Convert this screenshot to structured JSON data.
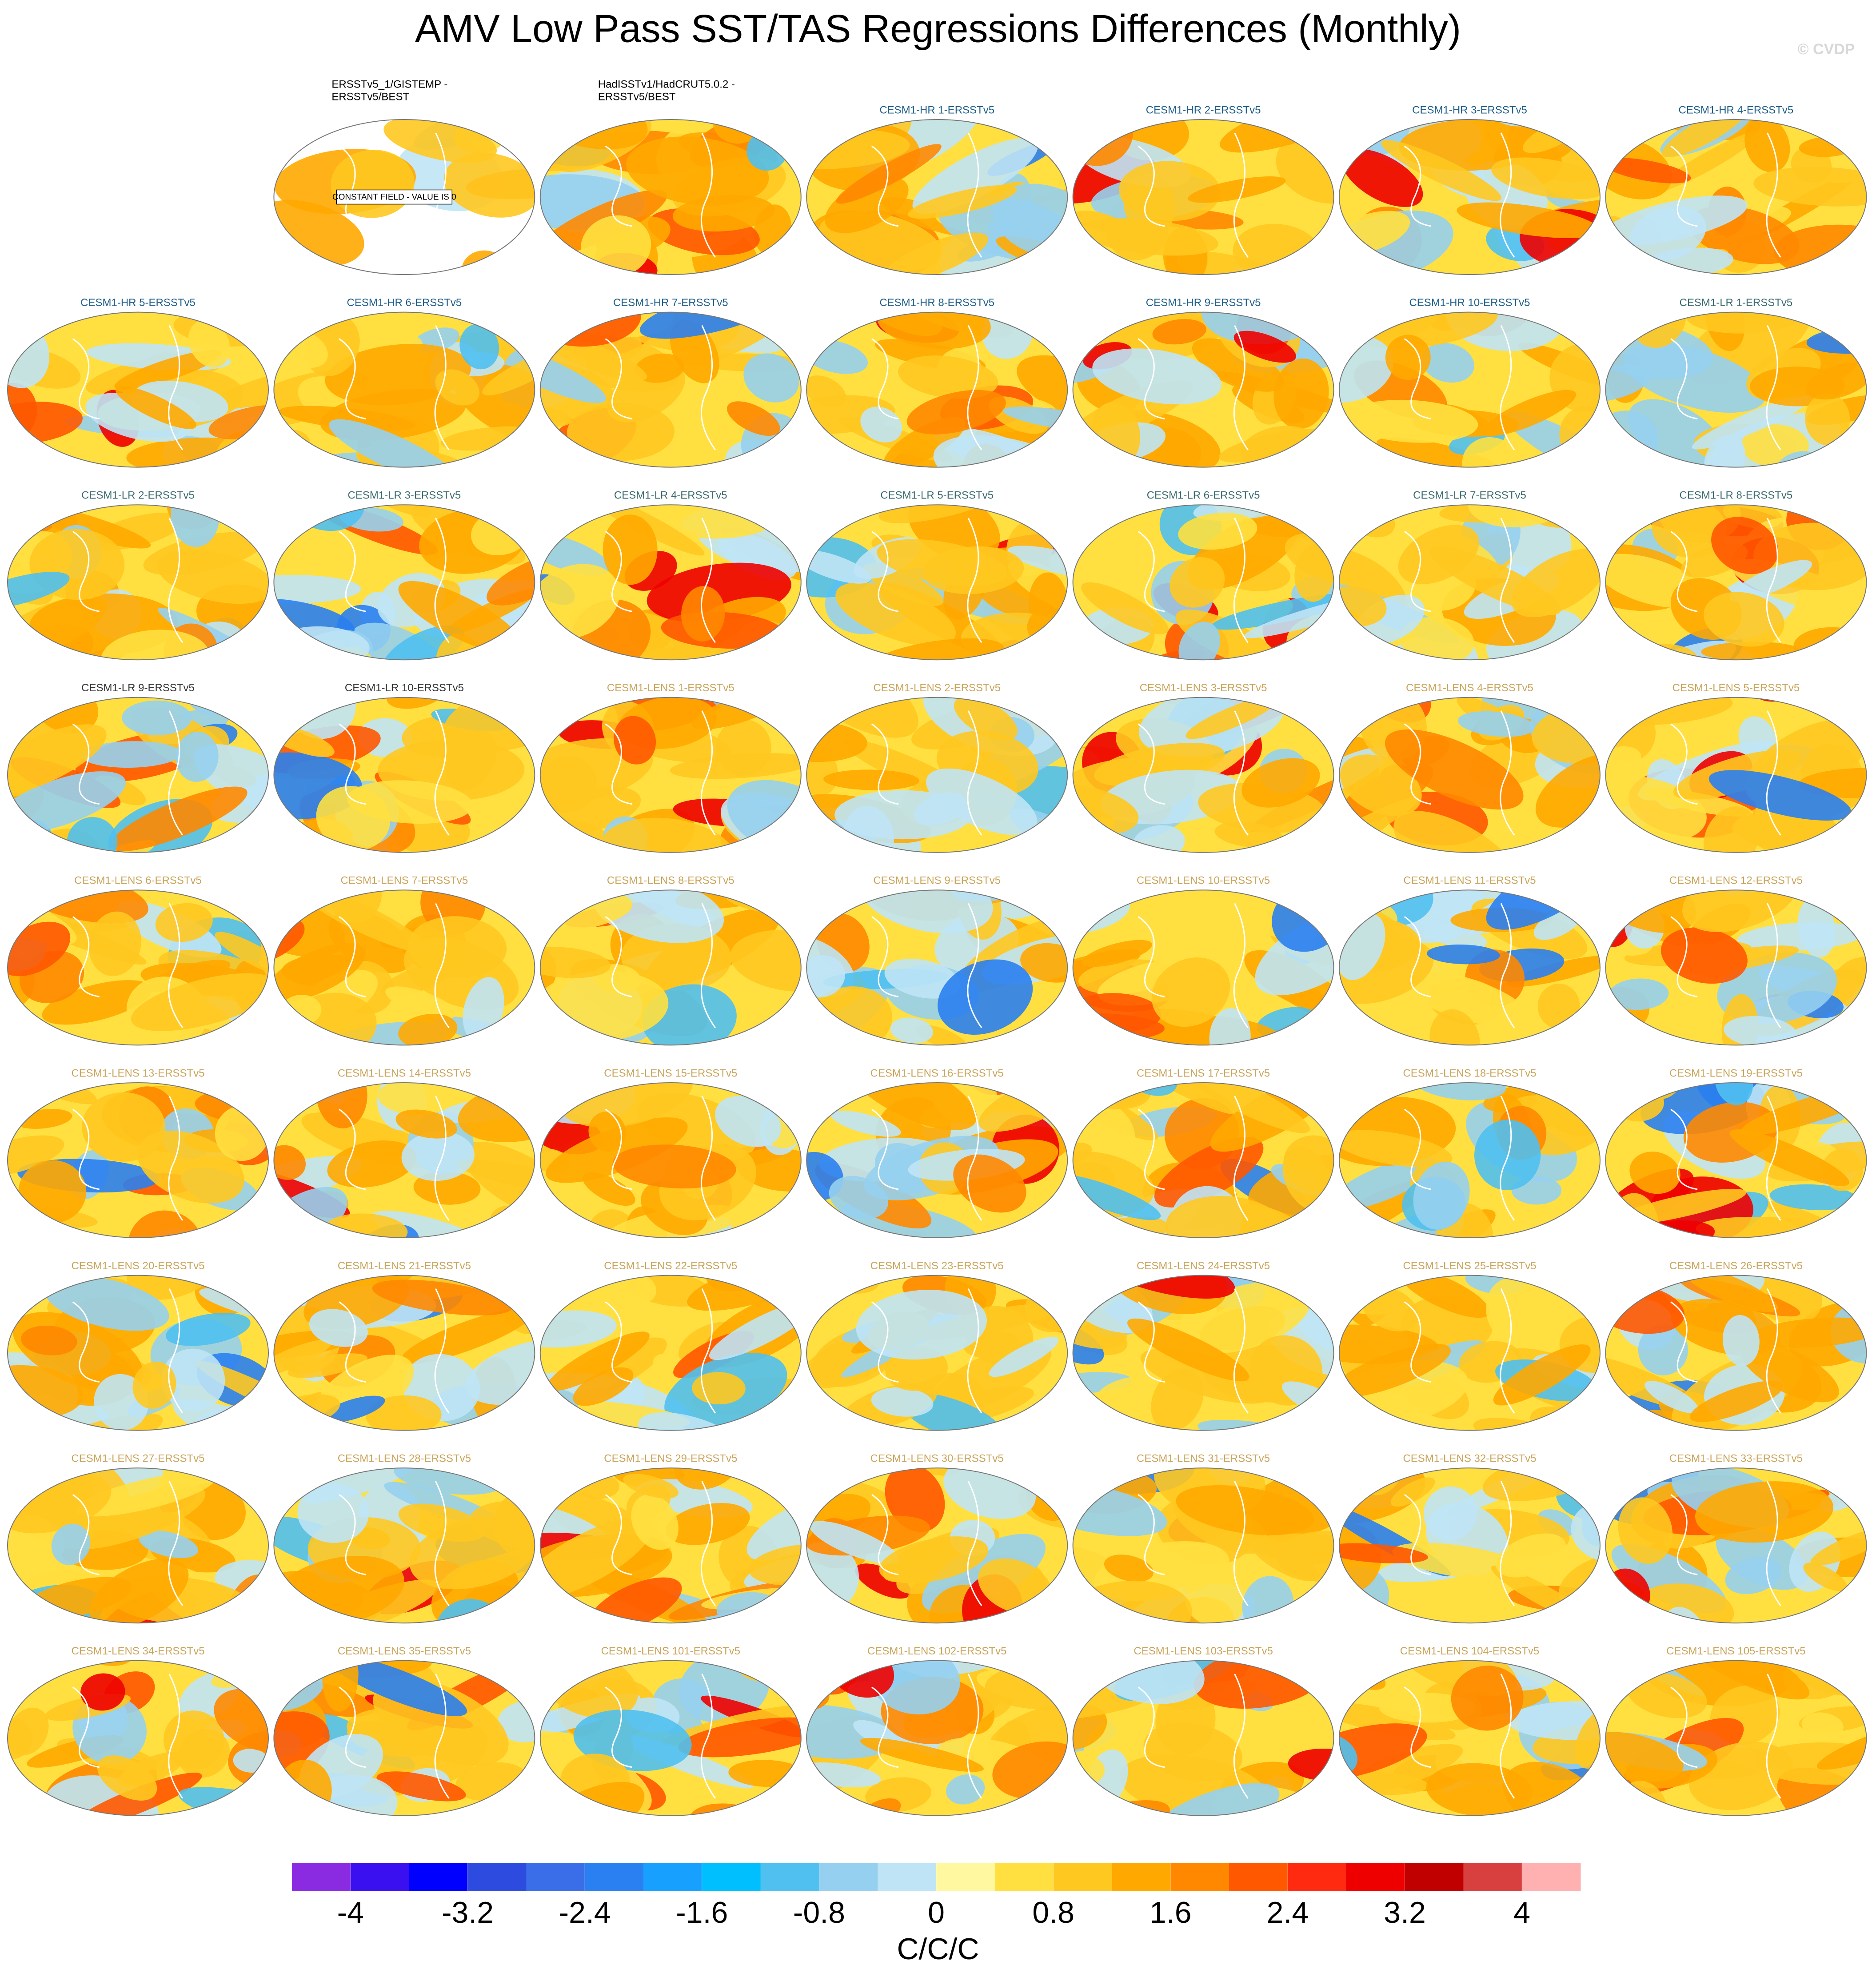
{
  "title": "AMV Low Pass SST/TAS Regressions Differences (Monthly)",
  "watermark": "© CVDP",
  "panels": [
    {
      "title": [
        "ERSSTv5_1/GISTEMP -",
        "ERSSTv5/BEST"
      ],
      "title_color": "#000000",
      "annotation": "CONSTANT FIELD - VALUE IS 0"
    },
    {
      "title": [
        "HadISSTv1/HadCRUT5.0.2 -",
        "ERSSTv5/BEST"
      ],
      "title_color": "#000000"
    },
    {
      "title": [
        "CESM1-HR 1-ERSSTv5"
      ],
      "title_color": "#1f5f8a"
    },
    {
      "title": [
        "CESM1-HR 2-ERSSTv5"
      ],
      "title_color": "#1f5f8a"
    },
    {
      "title": [
        "CESM1-HR 3-ERSSTv5"
      ],
      "title_color": "#1f5f8a"
    },
    {
      "title": [
        "CESM1-HR 4-ERSSTv5"
      ],
      "title_color": "#1f5f8a"
    },
    {
      "title": [
        "CESM1-HR 5-ERSSTv5"
      ],
      "title_color": "#1f5f8a"
    },
    {
      "title": [
        "CESM1-HR 6-ERSSTv5"
      ],
      "title_color": "#1f5f8a"
    },
    {
      "title": [
        "CESM1-HR 7-ERSSTv5"
      ],
      "title_color": "#1f5f8a"
    },
    {
      "title": [
        "CESM1-HR 8-ERSSTv5"
      ],
      "title_color": "#1f5f8a"
    },
    {
      "title": [
        "CESM1-HR 9-ERSSTv5"
      ],
      "title_color": "#1f5f8a"
    },
    {
      "title": [
        "CESM1-HR 10-ERSSTv5"
      ],
      "title_color": "#1f5f8a"
    },
    {
      "title": [
        "CESM1-LR 1-ERSSTv5"
      ],
      "title_color": "#3a6b70"
    },
    {
      "title": [
        "CESM1-LR 2-ERSSTv5"
      ],
      "title_color": "#3a6b70"
    },
    {
      "title": [
        "CESM1-LR 3-ERSSTv5"
      ],
      "title_color": "#3a6b70"
    },
    {
      "title": [
        "CESM1-LR 4-ERSSTv5"
      ],
      "title_color": "#3a6b70"
    },
    {
      "title": [
        "CESM1-LR 5-ERSSTv5"
      ],
      "title_color": "#3a6b70"
    },
    {
      "title": [
        "CESM1-LR 6-ERSSTv5"
      ],
      "title_color": "#3a6b70"
    },
    {
      "title": [
        "CESM1-LR 7-ERSSTv5"
      ],
      "title_color": "#3a6b70"
    },
    {
      "title": [
        "CESM1-LR 8-ERSSTv5"
      ],
      "title_color": "#3a6b70"
    },
    {
      "title": [
        "CESM1-LR 9-ERSSTv5"
      ],
      "title_color": "#333333"
    },
    {
      "title": [
        "CESM1-LR 10-ERSSTv5"
      ],
      "title_color": "#333333"
    },
    {
      "title": [
        "CESM1-LENS 1-ERSSTv5"
      ],
      "title_color": "#c9a45a"
    },
    {
      "title": [
        "CESM1-LENS 2-ERSSTv5"
      ],
      "title_color": "#c9a45a"
    },
    {
      "title": [
        "CESM1-LENS 3-ERSSTv5"
      ],
      "title_color": "#c9a45a"
    },
    {
      "title": [
        "CESM1-LENS 4-ERSSTv5"
      ],
      "title_color": "#c9a45a"
    },
    {
      "title": [
        "CESM1-LENS 5-ERSSTv5"
      ],
      "title_color": "#c9a45a"
    },
    {
      "title": [
        "CESM1-LENS 6-ERSSTv5"
      ],
      "title_color": "#c9a45a"
    },
    {
      "title": [
        "CESM1-LENS 7-ERSSTv5"
      ],
      "title_color": "#c9a45a"
    },
    {
      "title": [
        "CESM1-LENS 8-ERSSTv5"
      ],
      "title_color": "#c9a45a"
    },
    {
      "title": [
        "CESM1-LENS 9-ERSSTv5"
      ],
      "title_color": "#c9a45a"
    },
    {
      "title": [
        "CESM1-LENS 10-ERSSTv5"
      ],
      "title_color": "#c9a45a"
    },
    {
      "title": [
        "CESM1-LENS 11-ERSSTv5"
      ],
      "title_color": "#c9a45a"
    },
    {
      "title": [
        "CESM1-LENS 12-ERSSTv5"
      ],
      "title_color": "#c9a45a"
    },
    {
      "title": [
        "CESM1-LENS 13-ERSSTv5"
      ],
      "title_color": "#c9a45a"
    },
    {
      "title": [
        "CESM1-LENS 14-ERSSTv5"
      ],
      "title_color": "#c9a45a"
    },
    {
      "title": [
        "CESM1-LENS 15-ERSSTv5"
      ],
      "title_color": "#c9a45a"
    },
    {
      "title": [
        "CESM1-LENS 16-ERSSTv5"
      ],
      "title_color": "#c9a45a"
    },
    {
      "title": [
        "CESM1-LENS 17-ERSSTv5"
      ],
      "title_color": "#c9a45a"
    },
    {
      "title": [
        "CESM1-LENS 18-ERSSTv5"
      ],
      "title_color": "#c9a45a"
    },
    {
      "title": [
        "CESM1-LENS 19-ERSSTv5"
      ],
      "title_color": "#c9a45a"
    },
    {
      "title": [
        "CESM1-LENS 20-ERSSTv5"
      ],
      "title_color": "#c9a45a"
    },
    {
      "title": [
        "CESM1-LENS 21-ERSSTv5"
      ],
      "title_color": "#c9a45a"
    },
    {
      "title": [
        "CESM1-LENS 22-ERSSTv5"
      ],
      "title_color": "#c9a45a"
    },
    {
      "title": [
        "CESM1-LENS 23-ERSSTv5"
      ],
      "title_color": "#c9a45a"
    },
    {
      "title": [
        "CESM1-LENS 24-ERSSTv5"
      ],
      "title_color": "#c9a45a"
    },
    {
      "title": [
        "CESM1-LENS 25-ERSSTv5"
      ],
      "title_color": "#c9a45a"
    },
    {
      "title": [
        "CESM1-LENS 26-ERSSTv5"
      ],
      "title_color": "#c9a45a"
    },
    {
      "title": [
        "CESM1-LENS 27-ERSSTv5"
      ],
      "title_color": "#c9a45a"
    },
    {
      "title": [
        "CESM1-LENS 28-ERSSTv5"
      ],
      "title_color": "#c9a45a"
    },
    {
      "title": [
        "CESM1-LENS 29-ERSSTv5"
      ],
      "title_color": "#c9a45a"
    },
    {
      "title": [
        "CESM1-LENS 30-ERSSTv5"
      ],
      "title_color": "#c9a45a"
    },
    {
      "title": [
        "CESM1-LENS 31-ERSSTv5"
      ],
      "title_color": "#c9a45a"
    },
    {
      "title": [
        "CESM1-LENS 32-ERSSTv5"
      ],
      "title_color": "#c9a45a"
    },
    {
      "title": [
        "CESM1-LENS 33-ERSSTv5"
      ],
      "title_color": "#c9a45a"
    },
    {
      "title": [
        "CESM1-LENS 34-ERSSTv5"
      ],
      "title_color": "#c9a45a"
    },
    {
      "title": [
        "CESM1-LENS 35-ERSSTv5"
      ],
      "title_color": "#c9a45a"
    },
    {
      "title": [
        "CESM1-LENS 101-ERSSTv5"
      ],
      "title_color": "#c9a45a"
    },
    {
      "title": [
        "CESM1-LENS 102-ERSSTv5"
      ],
      "title_color": "#c9a45a"
    },
    {
      "title": [
        "CESM1-LENS 103-ERSSTv5"
      ],
      "title_color": "#c9a45a"
    },
    {
      "title": [
        "CESM1-LENS 104-ERSSTv5"
      ],
      "title_color": "#c9a45a"
    },
    {
      "title": [
        "CESM1-LENS 105-ERSSTv5"
      ],
      "title_color": "#c9a45a"
    }
  ],
  "colorbar": {
    "colors": [
      "#8a2be2",
      "#3a10f0",
      "#0000ff",
      "#2e4be0",
      "#3a6ee8",
      "#2a80f0",
      "#18a0ff",
      "#00bfff",
      "#50c0f0",
      "#96d0f0",
      "#bfe4f5",
      "#fff8a0",
      "#ffe040",
      "#ffc820",
      "#ffa800",
      "#ff8800",
      "#ff5800",
      "#ff2a10",
      "#ee0000",
      "#c00000",
      "#d84040",
      "#ffb0b0"
    ],
    "clim": [
      -4.4,
      4.4
    ],
    "ticks": [
      -4,
      -3.2,
      -2.4,
      -1.6,
      -0.8,
      0,
      0.8,
      1.6,
      2.4,
      3.2,
      4
    ],
    "label": "C/C/C"
  }
}
